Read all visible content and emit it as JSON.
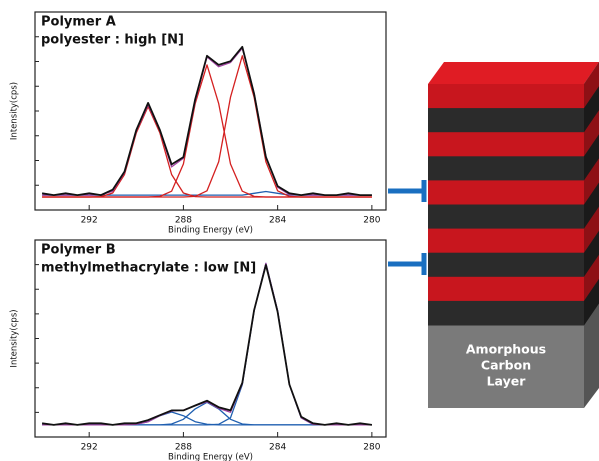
{
  "chart_data": [
    {
      "type": "line",
      "title": "Polymer A",
      "subtitle": "polyester : high [N]",
      "x_label": "Binding Energy (eV)",
      "y_label": "Intensity(cps)",
      "x": [
        294,
        293.5,
        293,
        292.5,
        292,
        291.5,
        291,
        290.5,
        290,
        289.5,
        289,
        288.5,
        288,
        287.5,
        287,
        286.5,
        286,
        285.5,
        285,
        284.5,
        284,
        283.5,
        283,
        282.5,
        282,
        281.5,
        281,
        280.5,
        280
      ],
      "xlim": [
        294.3,
        279.4
      ],
      "xticks": [
        292,
        288,
        284,
        280
      ],
      "ylim": [
        -5,
        100
      ],
      "series": [
        {
          "color": "#1f5fb0",
          "values": [
            1,
            1,
            1,
            1,
            1,
            1,
            1,
            1,
            1,
            1,
            1,
            1,
            1,
            1,
            1,
            1,
            1,
            1,
            2,
            3,
            2,
            1,
            1,
            1,
            1,
            1,
            1,
            1,
            1
          ]
        },
        {
          "color": "#d42020",
          "values": [
            0,
            0,
            0,
            0,
            0,
            0.2,
            2.2,
            12.4,
            35.4,
            50,
            35.4,
            12.4,
            2.2,
            0.2,
            0,
            0,
            0,
            0,
            0,
            0,
            0,
            0,
            0,
            0,
            0,
            0,
            0,
            0,
            0
          ]
        },
        {
          "color": "#d42020",
          "values": [
            0,
            0,
            0,
            0,
            0,
            0,
            0,
            0,
            0,
            0,
            0.3,
            3.2,
            18.2,
            51.6,
            73,
            51.6,
            18.2,
            3.2,
            0.3,
            0,
            0,
            0,
            0,
            0,
            0,
            0,
            0,
            0,
            0
          ]
        },
        {
          "color": "#d42020",
          "values": [
            0,
            0,
            0,
            0,
            0,
            0,
            0,
            0,
            0,
            0,
            0,
            0,
            0,
            0.3,
            3.4,
            19.4,
            55.1,
            78,
            55.1,
            19.4,
            3.4,
            0.3,
            0,
            0,
            0,
            0,
            0,
            0,
            0
          ]
        },
        {
          "color": "#a040a0",
          "values": [
            1,
            1,
            1,
            1,
            1,
            1.2,
            3.2,
            13.4,
            36.4,
            51,
            36.7,
            16.6,
            21.4,
            53.1,
            77.4,
            72,
            74.3,
            82.2,
            57.4,
            22.4,
            5.4,
            1.3,
            1,
            1,
            1,
            1,
            1,
            1,
            1
          ]
        },
        {
          "color": "#111111",
          "values": [
            2,
            1,
            2,
            1,
            2,
            1,
            4,
            14,
            37,
            52,
            37,
            18,
            22,
            54,
            78,
            73,
            75,
            83,
            57,
            22,
            6,
            2,
            1,
            2,
            1,
            1,
            2,
            1,
            1
          ]
        }
      ]
    },
    {
      "type": "line",
      "title": "Polymer B",
      "subtitle": "methylmethacrylate : low [N]",
      "x_label": "Binding Energy (eV)",
      "y_label": "Intensity(cps)",
      "x": [
        294,
        293.5,
        293,
        292.5,
        292,
        291.5,
        291,
        290.5,
        290,
        289.5,
        289,
        288.5,
        288,
        287.5,
        287,
        286.5,
        286,
        285.5,
        285,
        284.5,
        284,
        283.5,
        283,
        282.5,
        282,
        281.5,
        281,
        280.5,
        280
      ],
      "xlim": [
        294.3,
        279.4
      ],
      "xticks": [
        292,
        288,
        284,
        280
      ],
      "ylim": [
        -5,
        112
      ],
      "series": [
        {
          "color": "#1f5fb0",
          "values": [
            0,
            0,
            0,
            0,
            0,
            0,
            0,
            0,
            0.4,
            2,
            5.7,
            8,
            5.7,
            2,
            0.4,
            0,
            0,
            0,
            0,
            0,
            0,
            0,
            0,
            0,
            0,
            0,
            0,
            0,
            0
          ]
        },
        {
          "color": "#1f5fb0",
          "values": [
            0,
            0,
            0,
            0,
            0,
            0,
            0,
            0,
            0,
            0,
            0,
            0.6,
            3.5,
            9.9,
            14,
            9.9,
            3.5,
            0.6,
            0,
            0,
            0,
            0,
            0,
            0,
            0,
            0,
            0,
            0,
            0
          ]
        },
        {
          "color": "#1f5fb0",
          "values": [
            0,
            0,
            0,
            0,
            0,
            0,
            0,
            0,
            0,
            0,
            0,
            0,
            0,
            0,
            0,
            0.4,
            4.4,
            24.9,
            70.7,
            100,
            70.7,
            24.9,
            4.4,
            0.4,
            0,
            0,
            0,
            0,
            0
          ]
        },
        {
          "color": "#a040a0",
          "values": [
            0,
            0,
            0,
            0,
            0,
            0,
            0,
            0,
            0.4,
            2,
            5.7,
            8.6,
            9.2,
            11.9,
            14.4,
            10.3,
            7.9,
            25.5,
            70.7,
            100,
            70.7,
            24.9,
            4.4,
            0.4,
            0,
            0,
            0,
            0,
            0
          ]
        },
        {
          "color": "#111111",
          "values": [
            1,
            0,
            1,
            0,
            1,
            1,
            0,
            1,
            1,
            3,
            6,
            9,
            9,
            12,
            15,
            11,
            9,
            26,
            71,
            99,
            70,
            25,
            5,
            1,
            0,
            1,
            0,
            1,
            0
          ]
        }
      ]
    }
  ],
  "diagram": {
    "layer_label": [
      "Amorphous",
      "Carbon",
      "Layer"
    ]
  }
}
